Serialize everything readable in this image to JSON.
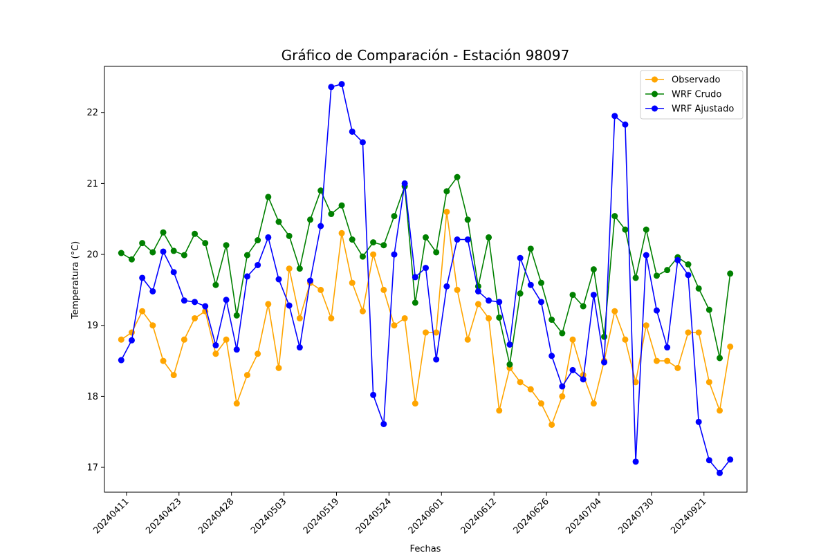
{
  "chart_data": {
    "type": "line",
    "title": "Gráfico de Comparación - Estación 98097",
    "xlabel": "Fechas",
    "ylabel": "Temperatura (°C)",
    "ylim": [
      16.65,
      22.65
    ],
    "yticks": [
      17,
      18,
      19,
      20,
      21,
      22
    ],
    "grid": false,
    "legend_position": "top-right",
    "xtick_labels": [
      "20240411",
      "20240423",
      "20240428",
      "20240503",
      "20240519",
      "20240524",
      "20240601",
      "20240612",
      "20240626",
      "20240704",
      "20240730",
      "20240921"
    ],
    "xtick_positions": [
      0.5,
      5.5,
      10.5,
      15.5,
      20.5,
      25.5,
      30.5,
      35.5,
      40.5,
      45.5,
      50.5,
      55.5
    ],
    "x": [
      0,
      1,
      2,
      3,
      4,
      5,
      6,
      7,
      8,
      9,
      10,
      11,
      12,
      13,
      14,
      15,
      16,
      17,
      18,
      19,
      20,
      21,
      22,
      23,
      24,
      25,
      26,
      27,
      28,
      29,
      30,
      31,
      32,
      33,
      34,
      35,
      36,
      37,
      38,
      39,
      40,
      41,
      42,
      43,
      44,
      45,
      46,
      47,
      48,
      49,
      50,
      51,
      52,
      53,
      54,
      55,
      56,
      57,
      58
    ],
    "series": [
      {
        "name": "Observado",
        "color": "#ffa500",
        "values": [
          18.8,
          18.9,
          19.2,
          19.0,
          18.5,
          18.3,
          18.8,
          19.1,
          19.2,
          18.6,
          18.8,
          17.9,
          18.3,
          18.6,
          19.3,
          18.4,
          19.8,
          19.1,
          19.6,
          19.5,
          19.1,
          20.3,
          19.6,
          19.2,
          20.0,
          19.5,
          19.0,
          19.1,
          17.9,
          18.9,
          18.9,
          20.6,
          19.5,
          18.8,
          19.3,
          19.1,
          17.8,
          18.4,
          18.2,
          18.1,
          17.9,
          17.6,
          18.0,
          18.8,
          18.3,
          17.9,
          18.5,
          19.2,
          18.8,
          18.2,
          19.0,
          18.5,
          18.5,
          18.4,
          18.9,
          18.9,
          18.2,
          17.8,
          18.7
        ]
      },
      {
        "name": "WRF Crudo",
        "color": "#008000",
        "values": [
          20.02,
          19.93,
          20.16,
          20.03,
          20.31,
          20.05,
          19.99,
          20.29,
          20.16,
          19.57,
          20.13,
          19.14,
          19.99,
          20.2,
          20.81,
          20.46,
          20.26,
          19.8,
          20.49,
          20.9,
          20.57,
          20.69,
          20.21,
          19.97,
          20.17,
          20.13,
          20.54,
          20.96,
          19.32,
          20.24,
          20.03,
          20.89,
          21.09,
          20.49,
          19.55,
          20.24,
          19.11,
          18.45,
          19.45,
          20.08,
          19.6,
          19.08,
          18.89,
          19.43,
          19.27,
          19.79,
          18.84,
          20.54,
          20.35,
          19.67,
          20.35,
          19.7,
          19.78,
          19.96,
          19.86,
          19.52,
          19.22,
          18.54,
          19.73
        ]
      },
      {
        "name": "WRF Ajustado",
        "color": "#0000ff",
        "values": [
          18.51,
          18.79,
          19.67,
          19.48,
          20.04,
          19.75,
          19.35,
          19.33,
          19.27,
          18.72,
          19.36,
          18.66,
          19.69,
          19.85,
          20.24,
          19.65,
          19.28,
          18.69,
          19.63,
          20.4,
          22.36,
          22.4,
          21.73,
          21.58,
          18.02,
          17.61,
          20.0,
          21.0,
          19.68,
          19.81,
          18.52,
          19.55,
          20.21,
          20.21,
          19.48,
          19.35,
          19.33,
          18.73,
          19.95,
          19.57,
          19.33,
          18.57,
          18.14,
          18.37,
          18.24,
          19.43,
          18.48,
          21.95,
          21.83,
          17.08,
          19.99,
          19.21,
          18.69,
          19.92,
          19.71,
          17.64,
          17.1,
          16.92,
          17.11
        ]
      }
    ]
  }
}
